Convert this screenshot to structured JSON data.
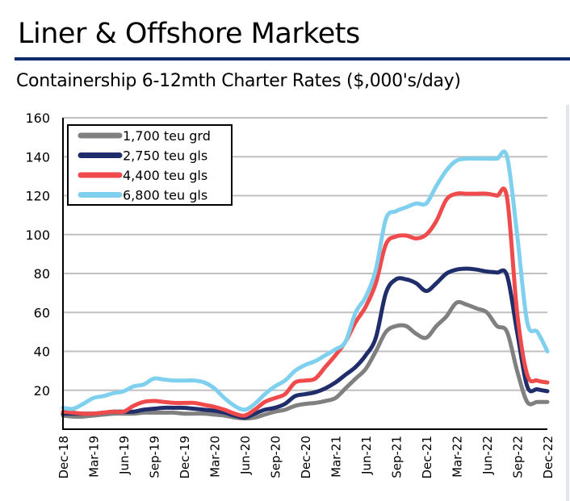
{
  "header": {
    "title": "Liner & Offshore Markets",
    "subtitle": "Containership 6-12mth Charter Rates ($,000's/day)"
  },
  "chart_data": {
    "type": "line",
    "title": "Containership 6-12mth Charter Rates ($,000's/day)",
    "xlabel": "",
    "ylabel": "",
    "ylim": [
      0,
      160
    ],
    "yticks": [
      20,
      40,
      60,
      80,
      100,
      120,
      140,
      160
    ],
    "xtick_labels": [
      "Dec-18",
      "Mar-19",
      "Jun-19",
      "Sep-19",
      "Dec-19",
      "Mar-20",
      "Jun-20",
      "Sep-20",
      "Dec-20",
      "Mar-21",
      "Jun-21",
      "Sep-21",
      "Dec-21",
      "Mar-22",
      "Jun-22",
      "Sep-22",
      "Dec-22"
    ],
    "x_note": "monthly points Dec-18 to Dec-22 (49 months)",
    "grid": true,
    "legend_position": "top-left",
    "series": [
      {
        "name": "1,700 teu grd",
        "color": "#808080",
        "values": [
          7,
          6.5,
          6.5,
          7,
          7.5,
          8,
          8,
          8,
          8.5,
          8.5,
          8.5,
          8.5,
          8,
          8,
          8,
          7.5,
          7,
          6,
          5.5,
          6,
          7.5,
          9,
          10,
          12,
          13,
          13.5,
          14.5,
          16,
          21,
          26,
          31,
          40,
          50,
          53,
          53,
          49,
          47,
          53,
          58,
          65,
          64,
          62,
          60,
          53,
          50,
          30,
          14,
          14,
          14
        ]
      },
      {
        "name": "2,750 teu gls",
        "color": "#1f2d6b",
        "values": [
          8,
          8,
          8,
          8,
          8.5,
          9,
          9,
          9,
          10,
          10.5,
          11,
          11,
          11,
          10.5,
          10,
          9.5,
          8.5,
          7,
          6,
          8,
          10,
          11,
          13,
          17,
          18,
          19,
          21,
          24,
          28,
          32,
          38,
          47,
          70,
          77,
          77,
          75,
          71,
          75,
          80,
          82,
          82.5,
          82,
          81,
          80.5,
          79,
          50,
          22,
          20.5,
          19.5
        ]
      },
      {
        "name": "4,400 teu gls",
        "color": "#f04b4c",
        "values": [
          9,
          8.5,
          8,
          8,
          8.5,
          9,
          9,
          12,
          14,
          14.5,
          14,
          13.5,
          13.5,
          13.5,
          12.5,
          11.5,
          10,
          8,
          7,
          10,
          14,
          16,
          18,
          24,
          25,
          26,
          32,
          38,
          45,
          55,
          63,
          75,
          95,
          99,
          99.5,
          98,
          100,
          107,
          118,
          121,
          121,
          121,
          121,
          120,
          119,
          60,
          28,
          25,
          24
        ]
      },
      {
        "name": "6,800 teu gls",
        "color": "#7fd0ef",
        "values": [
          11,
          10.5,
          13,
          16,
          17,
          18.5,
          19.5,
          22,
          23,
          26,
          25.5,
          25,
          25,
          25,
          24,
          21,
          16,
          12,
          10,
          13,
          18,
          22,
          25,
          30,
          33,
          35,
          38,
          41,
          45,
          60,
          68,
          82,
          108,
          112,
          114,
          116,
          116,
          125,
          133,
          138,
          139,
          139,
          139,
          139,
          140,
          100,
          55,
          50,
          40
        ]
      }
    ]
  }
}
